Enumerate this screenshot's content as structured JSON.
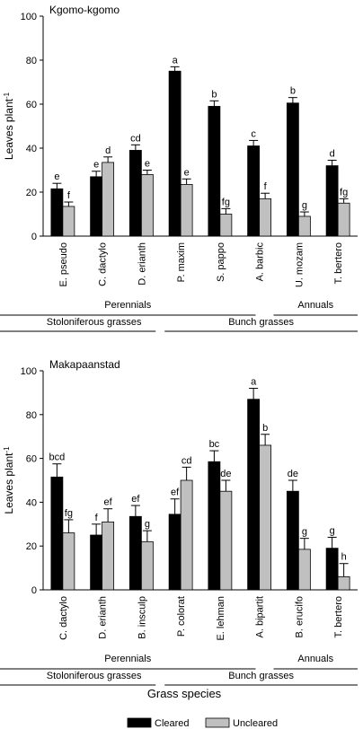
{
  "chart_data": [
    {
      "type": "bar",
      "title": "Kgomo-kgomo",
      "ylabel": "Leaves plant",
      "ylabel_sup": "-1",
      "ylim": [
        0,
        100
      ],
      "yticks": [
        0,
        20,
        40,
        60,
        80,
        100
      ],
      "categories": [
        "E. pseudo",
        "C. dactylo",
        "D. erianth",
        "P. maxim",
        "S. pappo",
        "A. barbic",
        "U. mozam",
        "T. bertero"
      ],
      "series": [
        {
          "name": "Cleared",
          "color": "#000000",
          "values": [
            21.5,
            27,
            39,
            75,
            59,
            41,
            60.5,
            32
          ],
          "errors": [
            2.5,
            2.5,
            2.5,
            2,
            2.5,
            2.5,
            2.5,
            2.5
          ],
          "letters": [
            "e",
            "e",
            "cd",
            "a",
            "b",
            "c",
            "b",
            "d"
          ]
        },
        {
          "name": "Uncleared",
          "color": "#c0c0c0",
          "values": [
            13.5,
            33.5,
            28,
            23.5,
            10,
            17,
            9,
            15
          ],
          "errors": [
            2,
            2.5,
            2,
            2.5,
            2.5,
            2.5,
            2,
            2
          ],
          "letters": [
            "f",
            "d",
            "e",
            "e",
            "fg",
            "f",
            "g",
            "fg"
          ]
        }
      ],
      "groups": [
        {
          "label": "Perennials",
          "from": 0,
          "to": 5
        },
        {
          "label": "Annuals",
          "from": 6,
          "to": 7
        },
        {
          "label": "Stoloniferous grasses",
          "from": 0,
          "to": 2
        },
        {
          "label": "Bunch grasses",
          "from": 3,
          "to": 7
        }
      ]
    },
    {
      "type": "bar",
      "title": "Makapaanstad",
      "ylabel": "Leaves plant",
      "ylabel_sup": "-1",
      "ylim": [
        0,
        100
      ],
      "yticks": [
        0,
        20,
        40,
        60,
        80,
        100
      ],
      "categories": [
        "C. dactylo",
        "D. erianth",
        "B. insculp",
        "P. colorat",
        "E. lehman",
        "A. bipartit",
        "B. erucifo",
        "T. bertero"
      ],
      "series": [
        {
          "name": "Cleared",
          "color": "#000000",
          "values": [
            51.5,
            25,
            33.5,
            34.5,
            58.5,
            87,
            45,
            19
          ],
          "errors": [
            6,
            5,
            5,
            7,
            5,
            5,
            5,
            5
          ],
          "letters": [
            "bcd",
            "f",
            "ef",
            "ef",
            "bc",
            "a",
            "de",
            "g"
          ]
        },
        {
          "name": "Uncleared",
          "color": "#c0c0c0",
          "values": [
            26,
            31,
            22,
            50,
            45,
            66,
            18.5,
            6
          ],
          "errors": [
            6,
            6,
            5,
            6,
            5,
            5,
            5,
            6
          ],
          "letters": [
            "fg",
            "ef",
            "g",
            "cd",
            "de",
            "b",
            "g",
            "h"
          ]
        }
      ],
      "groups": [
        {
          "label": "Perennials",
          "from": 0,
          "to": 5
        },
        {
          "label": "Annuals",
          "from": 6,
          "to": 7
        },
        {
          "label": "Stoloniferous grasses",
          "from": 0,
          "to": 2
        },
        {
          "label": "Bunch grasses",
          "from": 3,
          "to": 7
        }
      ]
    }
  ],
  "xlabel": "Grass species",
  "legend": [
    {
      "label": "Cleared",
      "color": "#000000"
    },
    {
      "label": "Uncleared",
      "color": "#c0c0c0"
    }
  ]
}
